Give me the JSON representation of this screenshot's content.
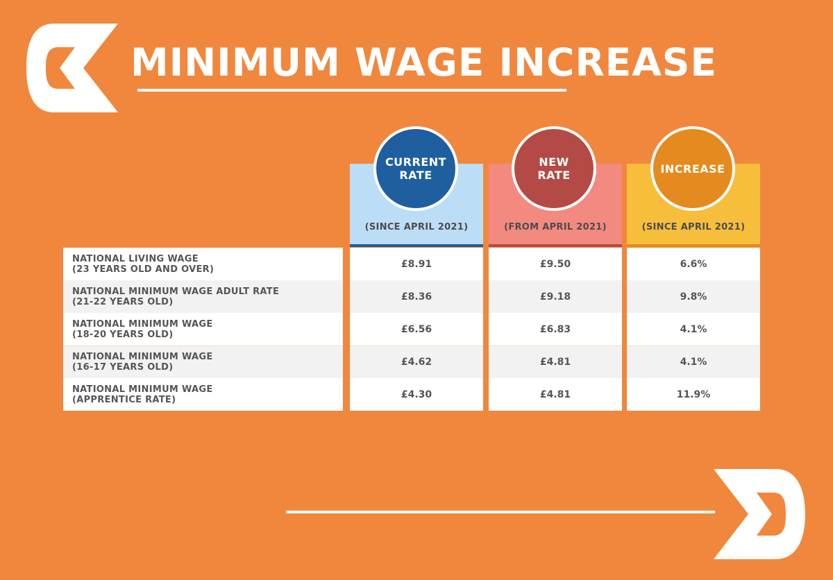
{
  "title": "MINIMUM WAGE INCREASE",
  "colors": {
    "background": "#F0873D",
    "current": "#1F5FA0",
    "new": "#B44A45",
    "increase": "#E58A1E"
  },
  "columns": [
    {
      "circle": "CURRENT\nRATE",
      "sub": "(SINCE APRIL 2021)",
      "bg": "#BCDDF6",
      "circle_color": "#1F5FA0",
      "accent": "#1F5FA0"
    },
    {
      "circle": "NEW\nRATE",
      "sub": "(FROM APRIL 2021)",
      "bg": "#F28A80",
      "circle_color": "#B44A45",
      "accent": "#B44A45"
    },
    {
      "circle": "INCREASE",
      "sub": "(SINCE APRIL 2021)",
      "bg": "#F7BE3C",
      "circle_color": "#E58A1E",
      "accent": "#E58A1E"
    }
  ],
  "rows": [
    {
      "label1": "NATIONAL LIVING WAGE",
      "label2": "(23 YEARS OLD AND OVER)",
      "current": "£8.91",
      "new": "£9.50",
      "increase": "6.6%"
    },
    {
      "label1": "NATIONAL MINIMUM WAGE ADULT RATE",
      "label2": "(21-22 YEARS OLD)",
      "current": "£8.36",
      "new": "£9.18",
      "increase": "9.8%"
    },
    {
      "label1": "NATIONAL MINIMUM WAGE",
      "label2": "(18-20 YEARS OLD)",
      "current": "£6.56",
      "new": "£6.83",
      "increase": "4.1%"
    },
    {
      "label1": "NATIONAL MINIMUM WAGE",
      "label2": "(16-17 YEARS OLD)",
      "current": "£4.62",
      "new": "£4.81",
      "increase": "4.1%"
    },
    {
      "label1": "NATIONAL MINIMUM WAGE",
      "label2": "(APPRENTICE RATE)",
      "current": "£4.30",
      "new": "£4.81",
      "increase": "11.9%"
    }
  ]
}
